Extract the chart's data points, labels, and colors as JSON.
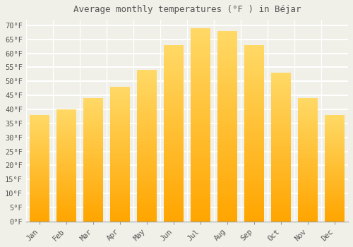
{
  "title": "Average monthly temperatures (°F ) in Béjar",
  "months": [
    "Jan",
    "Feb",
    "Mar",
    "Apr",
    "May",
    "Jun",
    "Jul",
    "Aug",
    "Sep",
    "Oct",
    "Nov",
    "Dec"
  ],
  "values": [
    38,
    40,
    44,
    48,
    54,
    63,
    69,
    68,
    63,
    53,
    44,
    38
  ],
  "bar_color_top": "#FFD966",
  "bar_color_bottom": "#FFA500",
  "background_color": "#F0F0E8",
  "grid_color": "#FFFFFF",
  "text_color": "#555555",
  "ylim": [
    0,
    72
  ],
  "yticks": [
    0,
    5,
    10,
    15,
    20,
    25,
    30,
    35,
    40,
    45,
    50,
    55,
    60,
    65,
    70
  ],
  "title_fontsize": 9,
  "tick_fontsize": 7.5,
  "font_family": "monospace"
}
